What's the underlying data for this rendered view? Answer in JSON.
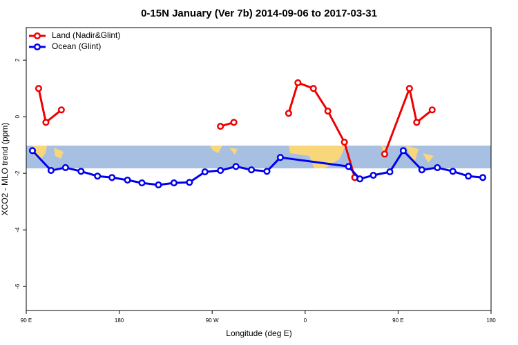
{
  "chart_data": {
    "type": "line",
    "title": "0-15N January (Ver 7b)   2014-09-06 to 2017-03-31",
    "x_label": "Longitude (deg E)",
    "y_label": "XCO2 - MLO trend (ppm)",
    "xlim": [
      90,
      540
    ],
    "ylim": [
      -6.85,
      3.15
    ],
    "xticks": [
      {
        "value": 90,
        "label": "90 E"
      },
      {
        "value": 180,
        "label": "180"
      },
      {
        "value": 270,
        "label": "90 W"
      },
      {
        "value": 360,
        "label": "0"
      },
      {
        "value": 450,
        "label": "90 E"
      },
      {
        "value": 540,
        "label": "180"
      }
    ],
    "yticks": [
      2,
      0,
      -2,
      -4,
      -6
    ],
    "legend": "top-left",
    "series": [
      {
        "name": "Land (Nadir&Glint)",
        "color": "#ee0000",
        "x": [
          102,
          109,
          124,
          null,
          278,
          291,
          null,
          344,
          353,
          368,
          382,
          398,
          408,
          null,
          437,
          461,
          468,
          483
        ],
        "values": [
          1.0,
          -0.2,
          0.24,
          null,
          -0.34,
          -0.2,
          null,
          0.12,
          1.2,
          1.0,
          0.2,
          -0.9,
          -2.15,
          null,
          -1.32,
          1.0,
          -0.2,
          0.24
        ]
      },
      {
        "name": "Ocean (Glint)",
        "color": "#0000ee",
        "x": [
          96,
          114,
          128,
          143,
          159,
          173,
          188,
          202,
          218,
          233,
          248,
          263,
          278,
          293,
          308,
          323,
          336,
          402,
          413,
          426,
          442,
          455,
          473,
          488,
          503,
          518,
          532
        ],
        "values": [
          -1.2,
          -1.9,
          -1.8,
          -1.93,
          -2.1,
          -2.15,
          -2.24,
          -2.34,
          -2.41,
          -2.34,
          -2.32,
          -1.95,
          -1.9,
          -1.76,
          -1.88,
          -1.93,
          -1.44,
          -1.76,
          -2.2,
          -2.07,
          -1.95,
          -1.2,
          -1.88,
          -1.8,
          -1.93,
          -2.1,
          -2.15
        ]
      }
    ]
  }
}
